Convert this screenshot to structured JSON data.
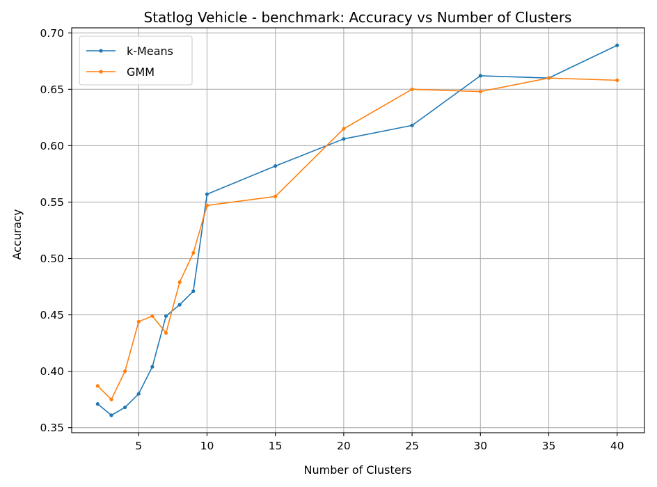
{
  "chart_data": {
    "type": "line",
    "title": "Statlog Vehicle - benchmark: Accuracy vs Number of Clusters",
    "xlabel": "Number of Clusters",
    "ylabel": "Accuracy",
    "xlim": [
      0.1,
      42
    ],
    "ylim": [
      0.3455,
      0.7045
    ],
    "xticks": [
      5,
      10,
      15,
      20,
      25,
      30,
      35,
      40
    ],
    "xtick_labels": [
      "5",
      "10",
      "15",
      "20",
      "25",
      "30",
      "35",
      "40"
    ],
    "yticks": [
      0.35,
      0.4,
      0.45,
      0.5,
      0.55,
      0.6,
      0.65,
      0.7
    ],
    "ytick_labels": [
      "0.35",
      "0.40",
      "0.45",
      "0.50",
      "0.55",
      "0.60",
      "0.65",
      "0.70"
    ],
    "grid": true,
    "legend_position": "top-left",
    "x": [
      2,
      3,
      4,
      5,
      6,
      7,
      8,
      9,
      10,
      15,
      20,
      25,
      30,
      35,
      40
    ],
    "series": [
      {
        "name": "k-Means",
        "color": "#1f77b4",
        "values": [
          0.371,
          0.361,
          0.368,
          0.38,
          0.404,
          0.449,
          0.459,
          0.471,
          0.557,
          0.582,
          0.606,
          0.618,
          0.662,
          0.66,
          0.689
        ]
      },
      {
        "name": "GMM",
        "color": "#ff7f0e",
        "values": [
          0.387,
          0.375,
          0.4,
          0.444,
          0.449,
          0.434,
          0.479,
          0.505,
          0.547,
          0.555,
          0.615,
          0.65,
          0.648,
          0.66,
          0.658
        ]
      }
    ]
  }
}
